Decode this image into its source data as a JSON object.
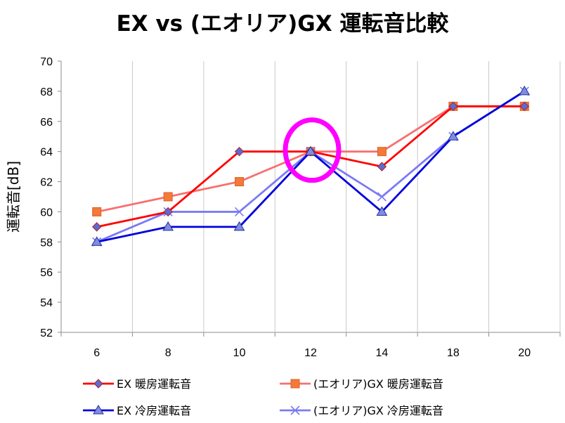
{
  "chart_data": {
    "type": "line",
    "title": "EX vs (エオリア)GX 運転音比較",
    "ylabel": "運転音[dB]",
    "xlabel": "",
    "categories": [
      "6",
      "8",
      "10",
      "12",
      "14",
      "18",
      "20"
    ],
    "ylim": [
      52,
      70
    ],
    "yticks": [
      52,
      54,
      56,
      58,
      60,
      62,
      64,
      66,
      68,
      70
    ],
    "grid": "vertical-category-lines",
    "legend_position": "bottom",
    "series": [
      {
        "name": "EX 暖房運転音",
        "color": "#ff0000",
        "marker": "diamond",
        "marker_color": "#5b6bd6",
        "values": [
          59,
          60,
          64,
          64,
          63,
          67,
          67
        ]
      },
      {
        "name": "(エオリア)GX 暖房運転音",
        "color": "#f87070",
        "marker": "square",
        "marker_color": "#f27a3a",
        "values": [
          60,
          61,
          62,
          64,
          64,
          67,
          67
        ]
      },
      {
        "name": "EX 冷房運転音",
        "color": "#0000dd",
        "marker": "triangle",
        "marker_color": "#7f8ce0",
        "values": [
          58,
          59,
          59,
          64,
          60,
          65,
          68
        ]
      },
      {
        "name": "(エオリア)GX 冷房運転音",
        "color": "#7b7bf5",
        "marker": "x",
        "marker_color": "#7b7bf5",
        "values": [
          58,
          60,
          60,
          64,
          61,
          65,
          68
        ]
      }
    ],
    "annotation": {
      "type": "circle-highlight",
      "category": "12",
      "color": "#ff00ff"
    }
  }
}
